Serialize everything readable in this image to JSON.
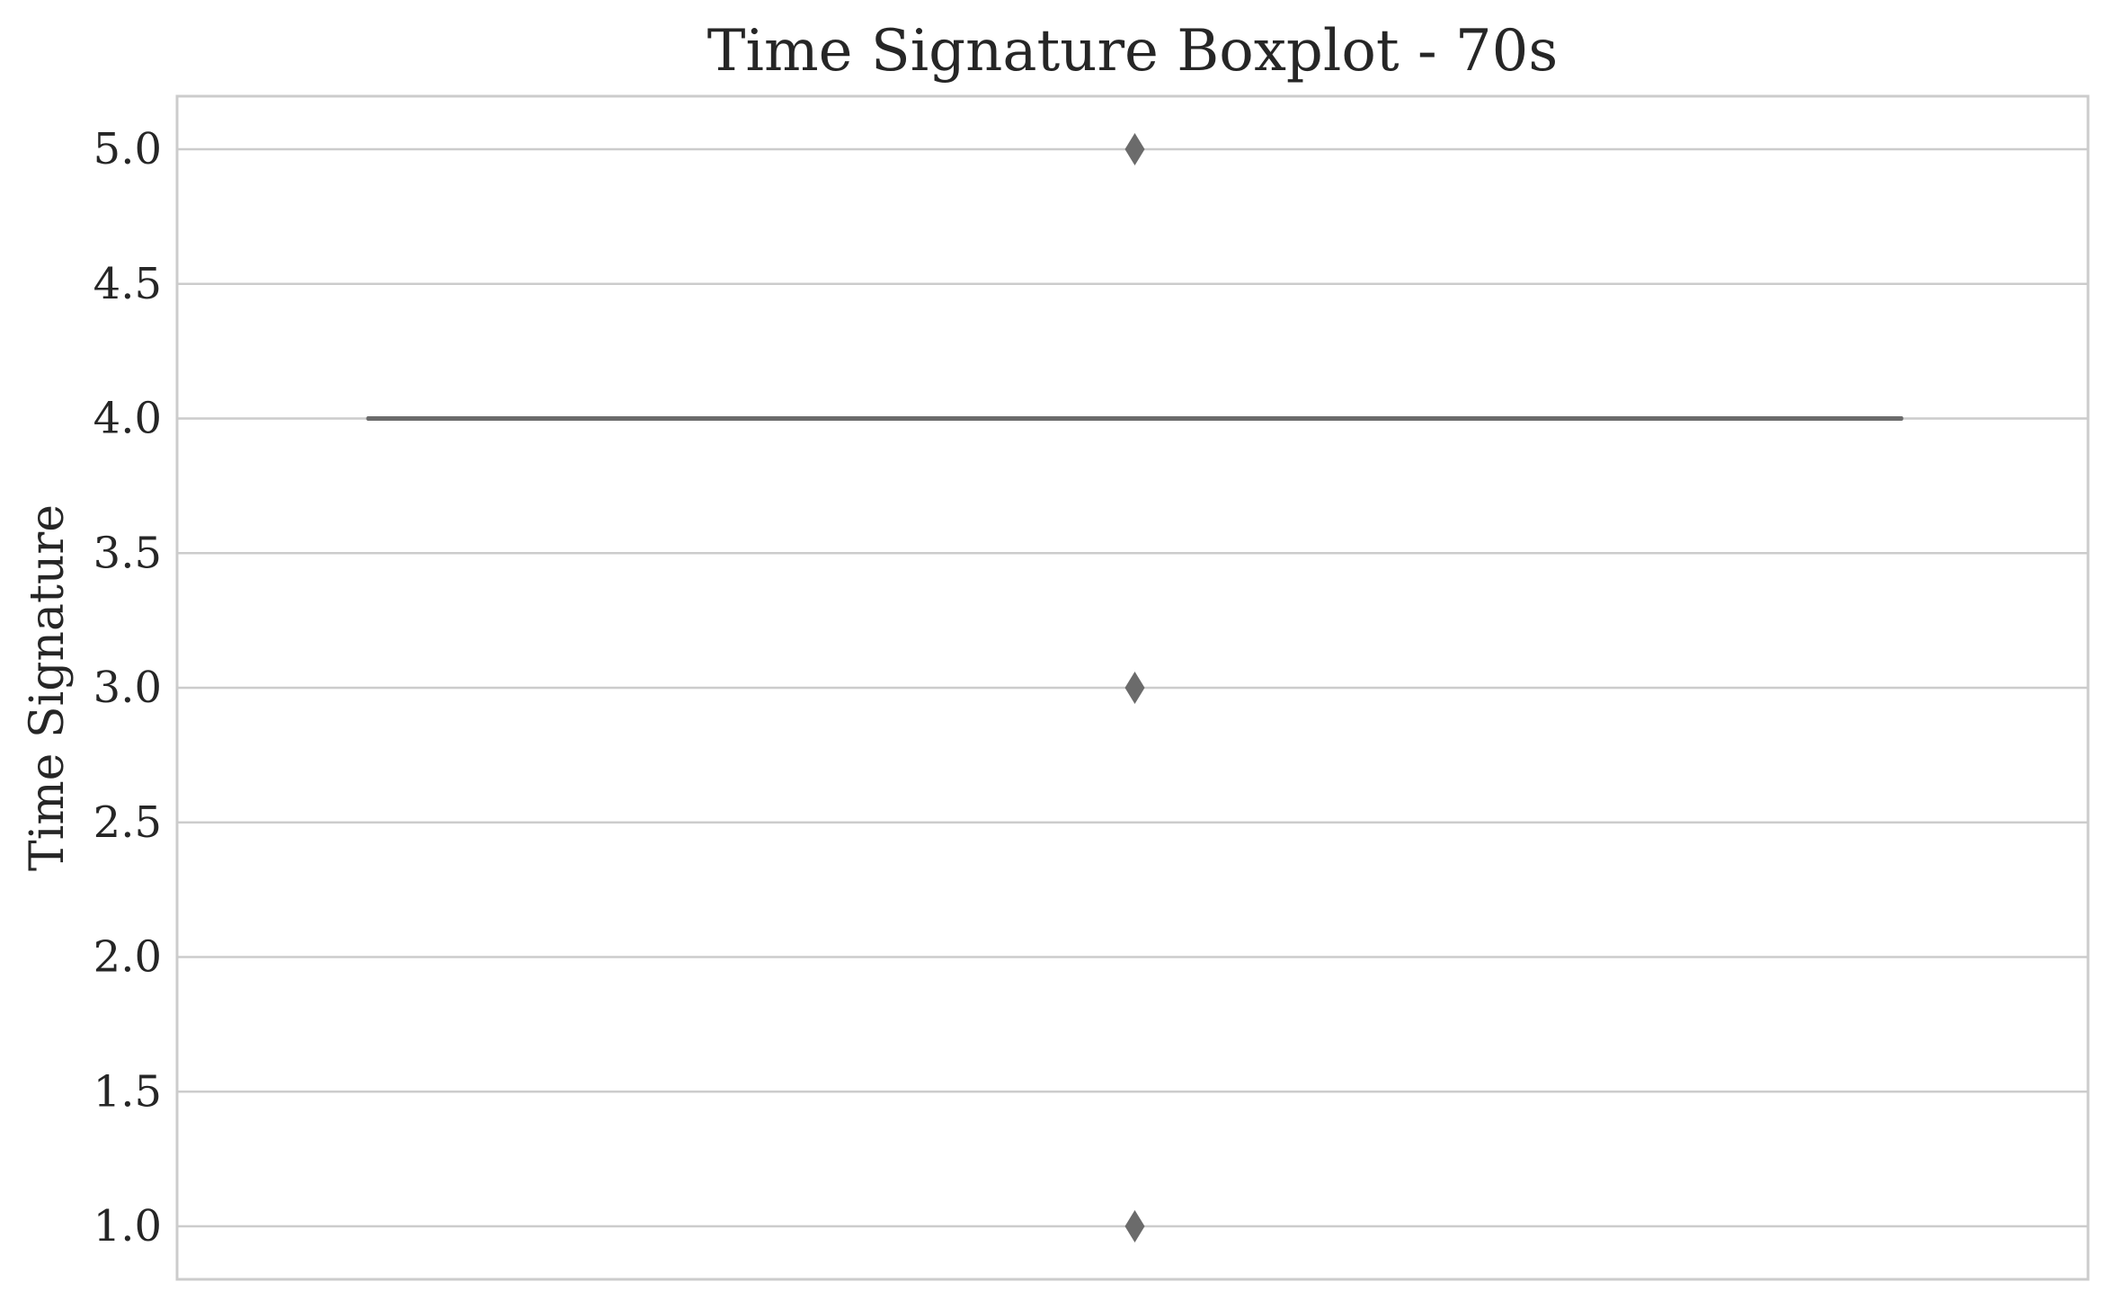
{
  "chart_data": {
    "type": "boxplot",
    "title": "Time Signature Boxplot - 70s",
    "xlabel": "",
    "ylabel": "Time Signature",
    "ylim": [
      0.8,
      5.2
    ],
    "yticks": [
      1.0,
      1.5,
      2.0,
      2.5,
      3.0,
      3.5,
      4.0,
      4.5,
      5.0
    ],
    "ytick_labels": [
      "1.0",
      "1.5",
      "2.0",
      "2.5",
      "3.0",
      "3.5",
      "4.0",
      "4.5",
      "5.0"
    ],
    "grid": true,
    "box": {
      "q1": 4.0,
      "median": 4.0,
      "q3": 4.0,
      "whisker_low": 4.0,
      "whisker_high": 4.0
    },
    "outliers": [
      5.0,
      3.0,
      1.0
    ],
    "colors": {
      "box_line": "#6b6b6b",
      "outlier": "#6b6b6b",
      "grid": "#cccccc",
      "spine": "#cccccc",
      "text": "#262626"
    }
  }
}
